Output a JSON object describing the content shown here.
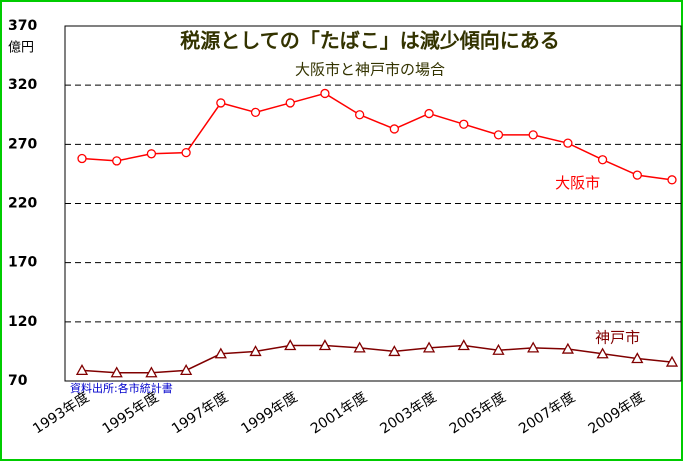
{
  "chart_data": {
    "type": "line",
    "title": "税源としての「たばこ」は減少傾向にある",
    "subtitle": "大阪市と神戸市の場合",
    "y_unit": "億円",
    "source": "資料出所:各市統計書",
    "categories": [
      "1993年度",
      null,
      "1995年度",
      null,
      "1997年度",
      null,
      "1999年度",
      null,
      "2001年度",
      null,
      "2003年度",
      null,
      "2005年度",
      null,
      "2007年度",
      null,
      "2009年度",
      null
    ],
    "series": [
      {
        "name": "大阪市",
        "color": "#ff0000",
        "marker": "circle",
        "values": [
          258,
          256,
          262,
          263,
          305,
          297,
          305,
          313,
          295,
          283,
          296,
          287,
          278,
          278,
          271,
          257,
          244,
          240
        ]
      },
      {
        "name": "神戸市",
        "color": "#800000",
        "marker": "triangle",
        "values": [
          79,
          77,
          77,
          79,
          93,
          95,
          100,
          100,
          98,
          95,
          98,
          100,
          96,
          98,
          97,
          93,
          89,
          86
        ]
      }
    ],
    "ylim": [
      70,
      370
    ],
    "yticks": [
      70,
      120,
      170,
      220,
      270,
      320,
      370
    ],
    "grid": true
  }
}
